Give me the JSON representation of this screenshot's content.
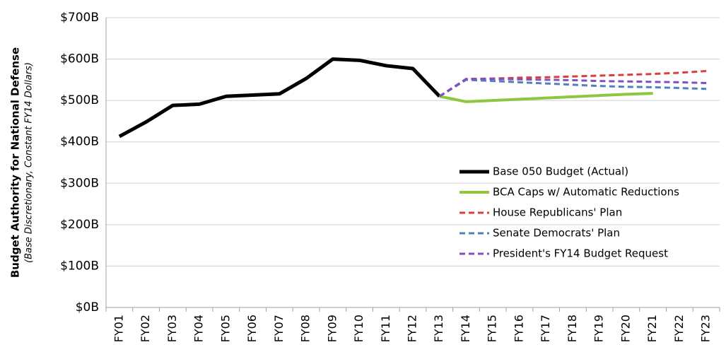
{
  "chart_data": {
    "type": "line",
    "ylabel": "Budget Authority for National Defense",
    "ylabel_sub": "(Base Discretionary, Constant FY14 Dollars)",
    "categories": [
      "FY01",
      "FY02",
      "FY03",
      "FY04",
      "FY05",
      "FY06",
      "FY07",
      "FY08",
      "FY09",
      "FY10",
      "FY11",
      "FY12",
      "FY13",
      "FY14",
      "FY15",
      "FY16",
      "FY17",
      "FY18",
      "FY19",
      "FY20",
      "FY21",
      "FY22",
      "FY23"
    ],
    "ylim": [
      0,
      700
    ],
    "yticks": [
      {
        "value": 0,
        "label": "$0B"
      },
      {
        "value": 100,
        "label": "$100B"
      },
      {
        "value": 200,
        "label": "$200B"
      },
      {
        "value": 300,
        "label": "$300B"
      },
      {
        "value": 400,
        "label": "$400B"
      },
      {
        "value": 500,
        "label": "$500B"
      },
      {
        "value": 600,
        "label": "$600B"
      },
      {
        "value": 700,
        "label": "$700B"
      }
    ],
    "grid": true,
    "series": [
      {
        "name": "Base 050 Budget (Actual)",
        "color": "#000000",
        "dashed": false,
        "width": 5,
        "values": [
          413,
          448,
          488,
          491,
          510,
          513,
          516,
          553,
          600,
          597,
          584,
          577,
          510,
          null,
          null,
          null,
          null,
          null,
          null,
          null,
          null,
          null,
          null
        ]
      },
      {
        "name": "BCA Caps w/ Automatic Reductions",
        "color": "#8dc63f",
        "dashed": false,
        "width": 4,
        "values": [
          null,
          null,
          null,
          null,
          null,
          null,
          null,
          null,
          null,
          null,
          null,
          null,
          510,
          497,
          500,
          503,
          506,
          509,
          512,
          515,
          517,
          null,
          null
        ]
      },
      {
        "name": "House Republicans' Plan",
        "color": "#d9403a",
        "dashed": true,
        "width": 3,
        "values": [
          null,
          null,
          null,
          null,
          null,
          null,
          null,
          null,
          null,
          null,
          null,
          null,
          510,
          552,
          553,
          555,
          556,
          558,
          560,
          562,
          564,
          567,
          571
        ]
      },
      {
        "name": "Senate Democrats' Plan",
        "color": "#4f81bd",
        "dashed": true,
        "width": 3,
        "values": [
          null,
          null,
          null,
          null,
          null,
          null,
          null,
          null,
          null,
          null,
          null,
          null,
          510,
          550,
          547,
          544,
          541,
          538,
          535,
          533,
          532,
          530,
          528
        ]
      },
      {
        "name": "President's FY14 Budget Request",
        "color": "#8050c0",
        "dashed": true,
        "width": 3,
        "values": [
          null,
          null,
          null,
          null,
          null,
          null,
          null,
          null,
          null,
          null,
          null,
          null,
          510,
          552,
          552,
          551,
          550,
          549,
          547,
          546,
          545,
          544,
          542
        ]
      }
    ]
  }
}
